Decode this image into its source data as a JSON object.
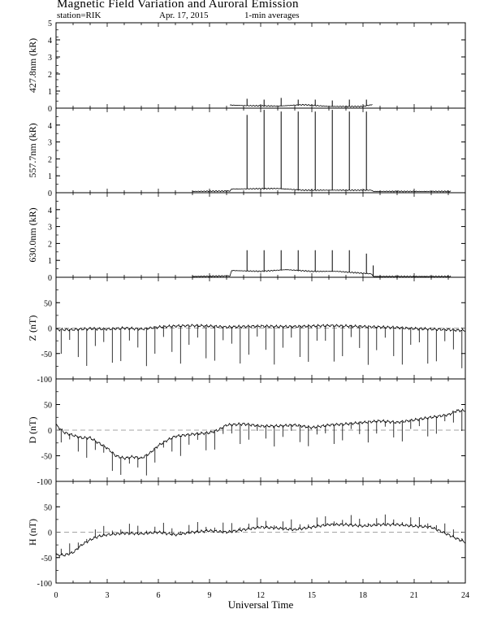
{
  "header": {
    "title": "Magnetic Field Variation and Auroral Emission",
    "station": "station=RIK",
    "date": "Apr. 17, 2015",
    "averaging": "1-min averages"
  },
  "chart_data": [
    {
      "type": "line",
      "ylabel": "427.8nm (kR)",
      "ylim": [
        0,
        5
      ],
      "yticks": [
        0,
        1,
        2,
        3,
        4,
        5
      ],
      "data_range_hours": [
        10.2,
        18.6
      ],
      "baseline": 0.12,
      "baseline_by_hour": [
        [
          10.2,
          0.18
        ],
        [
          11,
          0.15
        ],
        [
          13,
          0.12
        ],
        [
          14.5,
          0.2
        ],
        [
          16,
          0.1
        ],
        [
          18,
          0.1
        ],
        [
          18.6,
          0.22
        ]
      ],
      "spikes": [
        {
          "hour": 11.2,
          "value": 0.55
        },
        {
          "hour": 12.2,
          "value": 0.5
        },
        {
          "hour": 13.2,
          "value": 0.6
        },
        {
          "hour": 14.2,
          "value": 0.5
        },
        {
          "hour": 15.2,
          "value": 0.5
        },
        {
          "hour": 16.2,
          "value": 0.45
        },
        {
          "hour": 17.2,
          "value": 0.5
        },
        {
          "hour": 18.2,
          "value": 0.5
        }
      ]
    },
    {
      "type": "line",
      "ylabel": "557.7nm (kR)",
      "ylim": [
        0,
        5
      ],
      "yticks": [
        0,
        1,
        2,
        3,
        4
      ],
      "data_range_hours": [
        8.0,
        23.2
      ],
      "baseline": 0.1,
      "baseline_by_hour": [
        [
          8,
          0.08
        ],
        [
          10.2,
          0.1
        ],
        [
          10.3,
          0.22
        ],
        [
          13,
          0.25
        ],
        [
          14.5,
          0.15
        ],
        [
          18.5,
          0.15
        ],
        [
          18.6,
          0.08
        ],
        [
          23.2,
          0.08
        ]
      ],
      "spikes": [
        {
          "hour": 11.2,
          "value": 4.6
        },
        {
          "hour": 12.2,
          "value": 4.9
        },
        {
          "hour": 13.2,
          "value": 4.8
        },
        {
          "hour": 14.2,
          "value": 4.8
        },
        {
          "hour": 15.2,
          "value": 4.8
        },
        {
          "hour": 16.2,
          "value": 4.9
        },
        {
          "hour": 17.2,
          "value": 4.8
        },
        {
          "hour": 18.2,
          "value": 4.8
        }
      ]
    },
    {
      "type": "line",
      "ylabel": "630.0nm (kR)",
      "ylim": [
        0,
        5
      ],
      "yticks": [
        0,
        1,
        2,
        3,
        4
      ],
      "data_range_hours": [
        8.0,
        23.2
      ],
      "baseline": 0.08,
      "baseline_by_hour": [
        [
          8,
          0.05
        ],
        [
          10.2,
          0.08
        ],
        [
          10.3,
          0.4
        ],
        [
          12,
          0.35
        ],
        [
          13.5,
          0.45
        ],
        [
          15,
          0.35
        ],
        [
          16.5,
          0.35
        ],
        [
          18.5,
          0.2
        ],
        [
          18.6,
          0.05
        ],
        [
          23.2,
          0.05
        ]
      ],
      "spikes": [
        {
          "hour": 11.2,
          "value": 1.6
        },
        {
          "hour": 12.2,
          "value": 1.6
        },
        {
          "hour": 13.2,
          "value": 1.6
        },
        {
          "hour": 14.2,
          "value": 1.6
        },
        {
          "hour": 15.2,
          "value": 1.6
        },
        {
          "hour": 16.2,
          "value": 1.6
        },
        {
          "hour": 17.2,
          "value": 1.6
        },
        {
          "hour": 18.2,
          "value": 1.4
        },
        {
          "hour": 18.6,
          "value": 0.7
        }
      ]
    },
    {
      "type": "line",
      "ylabel": "Z (nT)",
      "ylim": [
        -100,
        100
      ],
      "yticks": [
        -100,
        -50,
        0,
        50
      ],
      "zero_line": true,
      "trace": [
        [
          0,
          -3
        ],
        [
          1,
          -3
        ],
        [
          2,
          -1
        ],
        [
          3,
          -2
        ],
        [
          4,
          0
        ],
        [
          5,
          -2
        ],
        [
          6,
          2
        ],
        [
          7,
          4
        ],
        [
          8,
          5
        ],
        [
          9,
          4
        ],
        [
          10,
          2
        ],
        [
          11,
          3
        ],
        [
          12,
          4
        ],
        [
          13,
          3
        ],
        [
          14,
          3
        ],
        [
          15,
          4
        ],
        [
          16,
          5
        ],
        [
          17,
          4
        ],
        [
          18,
          3
        ],
        [
          19,
          2
        ],
        [
          20,
          1
        ],
        [
          21,
          -1
        ],
        [
          22,
          -2
        ],
        [
          23,
          -3
        ],
        [
          24,
          -5
        ]
      ],
      "spike_interval_hours": 0.5,
      "spike_range": [
        -75,
        -20
      ]
    },
    {
      "type": "line",
      "ylabel": "D (nT)",
      "ylim": [
        -100,
        100
      ],
      "yticks": [
        -100,
        -50,
        0,
        50
      ],
      "zero_line": true,
      "trace": [
        [
          0,
          10
        ],
        [
          0.5,
          -5
        ],
        [
          1,
          -10
        ],
        [
          1.5,
          -15
        ],
        [
          2,
          -15
        ],
        [
          2.5,
          -25
        ],
        [
          3,
          -35
        ],
        [
          3.5,
          -50
        ],
        [
          4,
          -55
        ],
        [
          4.5,
          -52
        ],
        [
          5,
          -55
        ],
        [
          5.5,
          -45
        ],
        [
          6,
          -30
        ],
        [
          6.5,
          -20
        ],
        [
          7,
          -12
        ],
        [
          8,
          -8
        ],
        [
          9,
          -5
        ],
        [
          9.5,
          0
        ],
        [
          10,
          10
        ],
        [
          11,
          12
        ],
        [
          12,
          8
        ],
        [
          13,
          8
        ],
        [
          14,
          10
        ],
        [
          15,
          5
        ],
        [
          16,
          10
        ],
        [
          17,
          12
        ],
        [
          18,
          15
        ],
        [
          19,
          18
        ],
        [
          20,
          15
        ],
        [
          21,
          20
        ],
        [
          22,
          25
        ],
        [
          23,
          30
        ],
        [
          23.5,
          38
        ],
        [
          24,
          38
        ]
      ],
      "spike_interval_hours": 0.5,
      "spike_range": [
        -40,
        -10
      ]
    },
    {
      "type": "line",
      "ylabel": "H (nT)",
      "ylim": [
        -100,
        100
      ],
      "yticks": [
        -100,
        -50,
        0,
        50
      ],
      "zero_line": true,
      "trace": [
        [
          0,
          -45
        ],
        [
          0.5,
          -45
        ],
        [
          1,
          -40
        ],
        [
          1.5,
          -25
        ],
        [
          2,
          -15
        ],
        [
          2.5,
          -8
        ],
        [
          3,
          -5
        ],
        [
          4,
          -2
        ],
        [
          5,
          -3
        ],
        [
          6,
          0
        ],
        [
          7,
          -5
        ],
        [
          8,
          0
        ],
        [
          9,
          3
        ],
        [
          10,
          0
        ],
        [
          11,
          5
        ],
        [
          12,
          10
        ],
        [
          13,
          8
        ],
        [
          14,
          5
        ],
        [
          15,
          10
        ],
        [
          16,
          15
        ],
        [
          17,
          15
        ],
        [
          18,
          12
        ],
        [
          19,
          15
        ],
        [
          20,
          15
        ],
        [
          21,
          12
        ],
        [
          22,
          10
        ],
        [
          23,
          -5
        ],
        [
          24,
          -20
        ]
      ],
      "spike_interval_hours": 0.5,
      "spike_range": [
        5,
        20
      ]
    }
  ],
  "x_axis": {
    "label": "Universal Time",
    "range": [
      0,
      24
    ],
    "ticks": [
      0,
      3,
      6,
      9,
      12,
      15,
      18,
      21,
      24
    ]
  }
}
